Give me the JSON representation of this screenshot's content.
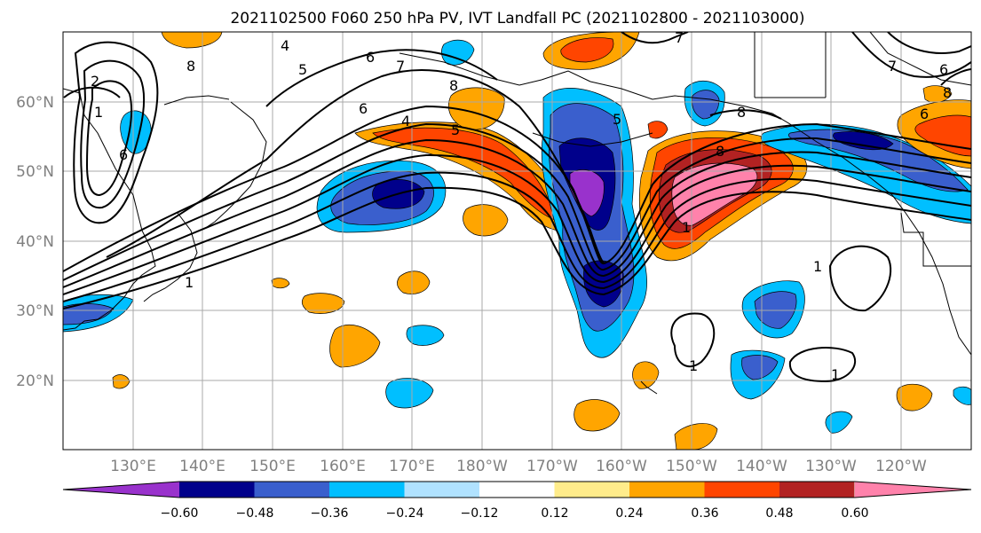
{
  "title": "2021102500 F060 250 hPa PV, IVT Landfall PC (2021102800 - 2021103000)",
  "lat_labels": [
    "60°N",
    "50°N",
    "40°N",
    "30°N",
    "20°N"
  ],
  "lon_labels": [
    "130°E",
    "140°E",
    "150°E",
    "160°E",
    "170°E",
    "180°W",
    "170°W",
    "160°W",
    "150°W",
    "140°W",
    "130°W",
    "120°W"
  ],
  "contour_labels": [
    "2",
    "1",
    "6",
    "8",
    "4",
    "5",
    "6",
    "7",
    "8",
    "4",
    "5",
    "6",
    "7",
    "8",
    "1",
    "1",
    "1",
    "1",
    "1",
    "5",
    "6",
    "7",
    "8",
    "6",
    "8"
  ],
  "colorbar": {
    "colors": [
      "#9932CC",
      "#00008B",
      "#3A5FCD",
      "#00BFFF",
      "#B0E2FF",
      "#FFFFFF",
      "#FFEC8B",
      "#FFA500",
      "#FF4500",
      "#B22222",
      "#FF82AB"
    ],
    "labels": [
      "−0.60",
      "−0.48",
      "−0.36",
      "−0.24",
      "−0.12",
      "0.12",
      "0.24",
      "0.36",
      "0.48",
      "0.60"
    ]
  }
}
